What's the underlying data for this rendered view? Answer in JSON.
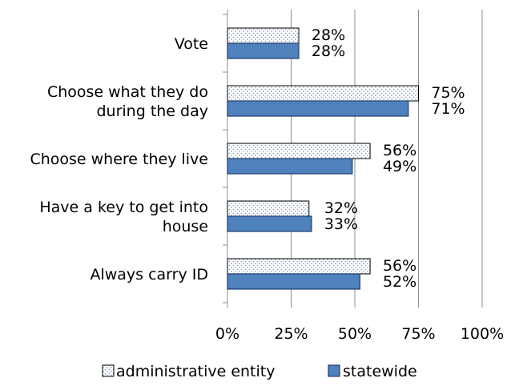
{
  "chart_data": {
    "type": "bar",
    "orientation": "horizontal",
    "categories": [
      [
        "Vote"
      ],
      [
        "Choose what they do",
        "during the day"
      ],
      [
        "Choose where they live"
      ],
      [
        "Have a key to get into",
        "house"
      ],
      [
        "Always carry ID"
      ]
    ],
    "series": [
      {
        "name": "administrative entity",
        "values": [
          28,
          75,
          56,
          32,
          56
        ],
        "labels": [
          "28%",
          "75%",
          "56%",
          "32%",
          "56%"
        ],
        "color": "#dbe5f3",
        "pattern": "dots"
      },
      {
        "name": "statewide",
        "values": [
          28,
          71,
          49,
          33,
          52
        ],
        "labels": [
          "28%",
          "71%",
          "49%",
          "33%",
          "52%"
        ],
        "color": "#4f81bd",
        "pattern": "solid"
      }
    ],
    "xlim": [
      0,
      100
    ],
    "xticks": [
      "0%",
      "25%",
      "50%",
      "75%",
      "100%"
    ],
    "grid": true,
    "legend": "bottom"
  }
}
